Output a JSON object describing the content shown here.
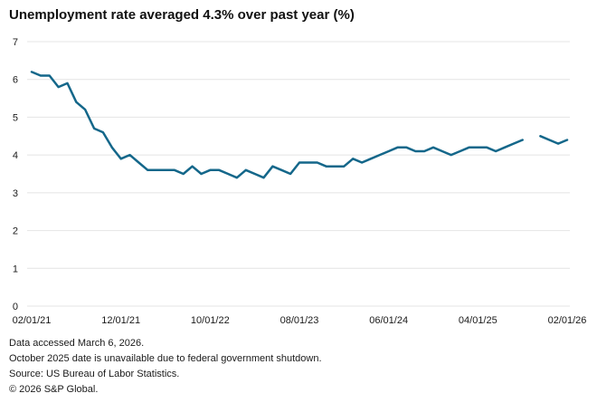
{
  "title": "Unemployment rate averaged 4.3% over past year (%)",
  "colors": {
    "line": "#14678a",
    "grid": "#e4e4e4",
    "text": "#1a1a1a"
  },
  "chart_data": {
    "type": "line",
    "title": "Unemployment rate averaged 4.3% over past year (%)",
    "unit": "%",
    "ylim": [
      0,
      7
    ],
    "y_ticks": [
      7,
      6,
      5,
      4,
      3,
      2,
      1,
      0
    ],
    "x_tick_labels": [
      "02/01/21",
      "12/01/21",
      "10/01/22",
      "08/01/23",
      "06/01/24",
      "04/01/25",
      "02/01/26"
    ],
    "grid": "horizontal",
    "legend": "none",
    "x": [
      "02/01/21",
      "03/01/21",
      "04/01/21",
      "05/01/21",
      "06/01/21",
      "07/01/21",
      "08/01/21",
      "09/01/21",
      "10/01/21",
      "11/01/21",
      "12/01/21",
      "01/01/22",
      "02/01/22",
      "03/01/22",
      "04/01/22",
      "05/01/22",
      "06/01/22",
      "07/01/22",
      "08/01/22",
      "09/01/22",
      "10/01/22",
      "11/01/22",
      "12/01/22",
      "01/01/23",
      "02/01/23",
      "03/01/23",
      "04/01/23",
      "05/01/23",
      "06/01/23",
      "07/01/23",
      "08/01/23",
      "09/01/23",
      "10/01/23",
      "11/01/23",
      "12/01/23",
      "01/01/24",
      "02/01/24",
      "03/01/24",
      "04/01/24",
      "05/01/24",
      "06/01/24",
      "07/01/24",
      "08/01/24",
      "09/01/24",
      "10/01/24",
      "11/01/24",
      "12/01/24",
      "01/01/25",
      "02/01/25",
      "03/01/25",
      "04/01/25",
      "05/01/25",
      "06/01/25",
      "07/01/25",
      "08/01/25",
      "09/01/25",
      "10/01/25",
      "11/01/25",
      "12/01/25",
      "01/01/26",
      "02/01/26"
    ],
    "values": [
      6.2,
      6.1,
      6.1,
      5.8,
      5.9,
      5.4,
      5.2,
      4.7,
      4.6,
      4.2,
      3.9,
      4.0,
      3.8,
      3.6,
      3.6,
      3.6,
      3.6,
      3.5,
      3.7,
      3.5,
      3.6,
      3.6,
      3.5,
      3.4,
      3.6,
      3.5,
      3.4,
      3.7,
      3.6,
      3.5,
      3.8,
      3.8,
      3.8,
      3.7,
      3.7,
      3.7,
      3.9,
      3.8,
      3.9,
      4.0,
      4.1,
      4.2,
      4.2,
      4.1,
      4.1,
      4.2,
      4.1,
      4.0,
      4.1,
      4.2,
      4.2,
      4.2,
      4.1,
      4.2,
      4.3,
      4.4,
      null,
      4.5,
      4.4,
      4.3,
      4.4
    ]
  },
  "footer": {
    "lines": [
      "Data accessed March 6, 2026.",
      "October 2025 date is unavailable due to federal government shutdown.",
      "Source: US Bureau of Labor Statistics.",
      "© 2026 S&P Global."
    ]
  }
}
